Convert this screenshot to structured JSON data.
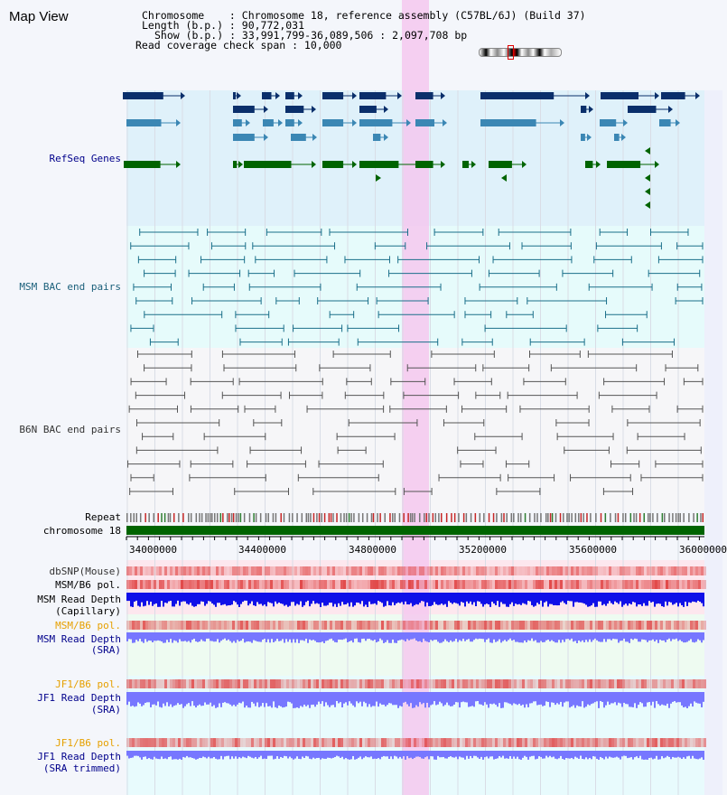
{
  "app": {
    "title": "Map View"
  },
  "header": {
    "chromosome_label": "Chromosome    : Chromosome 18, reference assembly (C57BL/6J) (Build 37)",
    "length_label": "Length (b.p.) : 90,772,031",
    "show_label": "Show (b.p.) : 33,991,799-36,089,506 : 2,097,708 bp",
    "coverage_label": "Read coverage check span : 10,000"
  },
  "tracks": {
    "refseq": "RefSeq Genes",
    "msm_bac": "MSM BAC end pairs",
    "b6n_bac": "B6N BAC end pairs",
    "repeat": "Repeat",
    "chromosome": "chromosome 18",
    "dbsnp": "dbSNP(Mouse)",
    "msm_b6_pol_1": "MSM/B6 pol.",
    "msm_read_depth_cap_1": "MSM Read Depth",
    "msm_read_depth_cap_2": "(Capillary)",
    "msm_b6_pol_2": "MSM/B6 pol.",
    "msm_read_depth_sra_1": "MSM Read Depth",
    "msm_read_depth_sra_2": "(SRA)",
    "jf1_b6_pol_1": "JF1/B6 pol.",
    "jf1_read_depth_sra_1": "JF1 Read Depth",
    "jf1_read_depth_sra_2": "(SRA)",
    "jf1_b6_pol_2": "JF1/B6 pol.",
    "jf1_read_depth_trim_1": "JF1 Read Depth",
    "jf1_read_depth_trim_2": "(SRA trimmed)"
  },
  "axis": {
    "ticks": [
      "34000000",
      "34400000",
      "34800000",
      "35200000",
      "35600000",
      "36000000"
    ]
  },
  "colors": {
    "refseq_dark": "#0a2f6b",
    "refseq_mid": "#3b87b4",
    "refseq_green": "#006400",
    "highlight": "#f5c8ee",
    "chromosome_bar": "#006400",
    "depth_capillary": "#1010e8",
    "depth_sra": "#7777ff",
    "pol_red": "#e04040"
  }
}
